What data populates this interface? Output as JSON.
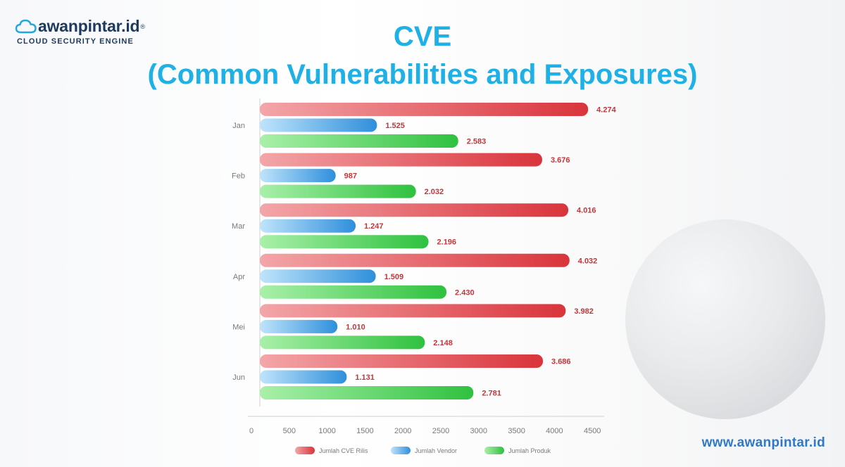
{
  "brand": {
    "name": "awanpintar.id",
    "reg": "®",
    "tagline": "CLOUD SECURITY ENGINE",
    "website": "www.awanpintar.id"
  },
  "title": {
    "line1": "CVE",
    "line2": "(Common Vulnerabilities and Exposures)"
  },
  "colors": {
    "title": "#1fb1e6",
    "series": [
      "#d9484e",
      "#3d9fe3",
      "#3fcc4f"
    ],
    "value_label": "#c1363b"
  },
  "chart_data": {
    "type": "bar",
    "orientation": "horizontal",
    "categories": [
      "Jan",
      "Feb",
      "Mar",
      "Apr",
      "Mei",
      "Jun"
    ],
    "series": [
      {
        "name": "Jumlah CVE Rilis",
        "values": [
          4274,
          3676,
          4016,
          4032,
          3982,
          3686
        ],
        "labels": [
          "4.274",
          "3.676",
          "4.016",
          "4.032",
          "3.982",
          "3.686"
        ]
      },
      {
        "name": "Jumlah Vendor",
        "values": [
          1525,
          987,
          1247,
          1509,
          1010,
          1131
        ],
        "labels": [
          "1.525",
          "987",
          "1.247",
          "1.509",
          "1.010",
          "1.131"
        ]
      },
      {
        "name": "Jumlah Produk",
        "values": [
          2583,
          2032,
          2196,
          2430,
          2148,
          2781
        ],
        "labels": [
          "2.583",
          "2.032",
          "2.196",
          "2.430",
          "2.148",
          "2.781"
        ]
      }
    ],
    "xlim": [
      0,
      4500
    ],
    "xticks": [
      0,
      500,
      1000,
      1500,
      2000,
      2500,
      3000,
      3500,
      4000,
      4500
    ],
    "legend_position": "bottom",
    "grid": false
  }
}
